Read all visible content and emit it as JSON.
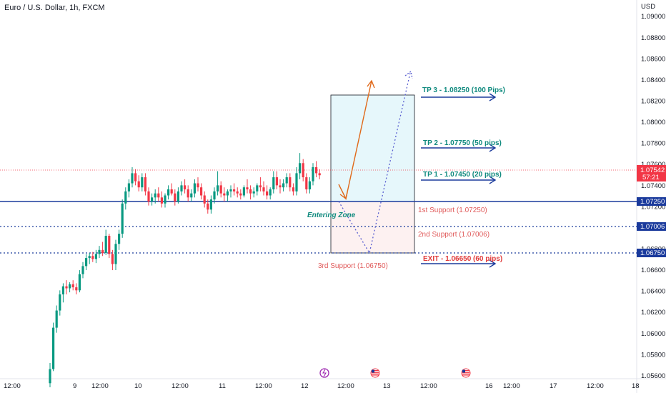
{
  "chart_data": {
    "type": "candlestick",
    "title": "Euro / U.S. Dollar, 1h, FXCM",
    "currency_label": "USD",
    "y_ticks": [
      "1.09000",
      "1.08800",
      "1.08600",
      "1.08400",
      "1.08200",
      "1.08000",
      "1.07800",
      "1.07600",
      "1.07400",
      "1.07200",
      "1.07000",
      "1.06800",
      "1.06600",
      "1.06400",
      "1.06200",
      "1.06000",
      "1.05800",
      "1.05600"
    ],
    "ylim": [
      1.0556,
      1.0912
    ],
    "x_ticks": [
      "12:00",
      "9",
      "12:00",
      "10",
      "12:00",
      "11",
      "12:00",
      "12",
      "12:00",
      "13",
      "12:00",
      "16",
      "12:00",
      "17",
      "12:00",
      "18"
    ],
    "current_price": "1.07542",
    "countdown": "57:21",
    "levels": [
      {
        "price": 1.0725,
        "label": "1.07250",
        "color": "#1a3a9c",
        "style": "solid"
      },
      {
        "price": 1.07006,
        "label": "1.07006",
        "color": "#1a3a9c",
        "style": "dotted"
      },
      {
        "price": 1.0675,
        "label": "1.06750",
        "color": "#1a3a9c",
        "style": "dotted"
      }
    ],
    "targets": [
      {
        "label": "TP 3 - 1.08250 (100 Pips)",
        "price": 1.0825
      },
      {
        "label": "TP 2 - 1.07750 (50 pips)",
        "price": 1.0775
      },
      {
        "label": "TP 1 - 1.07450 (20 pips)",
        "price": 1.0745
      }
    ],
    "exit": {
      "label": "EXIT - 1.06650 (60 pips)",
      "price": 1.0665
    },
    "supports": [
      {
        "label": "1st Support (1.07250)"
      },
      {
        "label": "2nd Support (1.07006)"
      },
      {
        "label": "3rd Support (1.06750)"
      }
    ],
    "entering_zone": "Entering Zone",
    "candles": [
      [
        1.0548,
        1.0568,
        1.0544,
        1.0562
      ],
      [
        1.0562,
        1.0608,
        1.056,
        1.0603
      ],
      [
        1.0603,
        1.0625,
        1.0598,
        1.062
      ],
      [
        1.062,
        1.064,
        1.0615,
        1.0636
      ],
      [
        1.0636,
        1.0647,
        1.0628,
        1.0644
      ],
      [
        1.0644,
        1.065,
        1.0636,
        1.0642
      ],
      [
        1.0642,
        1.0648,
        1.0638,
        1.0646
      ],
      [
        1.0646,
        1.065,
        1.064,
        1.0643
      ],
      [
        1.0643,
        1.0647,
        1.0636,
        1.064
      ],
      [
        1.064,
        1.066,
        1.0638,
        1.0656
      ],
      [
        1.0656,
        1.0668,
        1.0652,
        1.0664
      ],
      [
        1.0664,
        1.0676,
        1.066,
        1.0672
      ],
      [
        1.0672,
        1.0677,
        1.0666,
        1.0674
      ],
      [
        1.0674,
        1.0678,
        1.0668,
        1.0671
      ],
      [
        1.0671,
        1.068,
        1.0667,
        1.0676
      ],
      [
        1.0676,
        1.0684,
        1.0672,
        1.068
      ],
      [
        1.068,
        1.0688,
        1.0674,
        1.0677
      ],
      [
        1.0677,
        1.07,
        1.0675,
        1.0694
      ],
      [
        1.0694,
        1.0696,
        1.0672,
        1.0676
      ],
      [
        1.0676,
        1.068,
        1.066,
        1.0666
      ],
      [
        1.0666,
        1.069,
        1.066,
        1.0686
      ],
      [
        1.0686,
        1.07,
        1.068,
        1.0696
      ],
      [
        1.0696,
        1.073,
        1.0692,
        1.0726
      ],
      [
        1.0726,
        1.0742,
        1.072,
        1.0738
      ],
      [
        1.0738,
        1.075,
        1.0732,
        1.0746
      ],
      [
        1.0746,
        1.0762,
        1.0742,
        1.0756
      ],
      [
        1.0756,
        1.076,
        1.0744,
        1.0748
      ],
      [
        1.0748,
        1.0754,
        1.0738,
        1.0742
      ],
      [
        1.0742,
        1.0756,
        1.0738,
        1.0752
      ],
      [
        1.0752,
        1.0756,
        1.0734,
        1.0738
      ],
      [
        1.0738,
        1.0742,
        1.0724,
        1.0728
      ],
      [
        1.0728,
        1.0736,
        1.0724,
        1.0732
      ],
      [
        1.0732,
        1.074,
        1.0726,
        1.0736
      ],
      [
        1.0736,
        1.0742,
        1.0728,
        1.0732
      ],
      [
        1.0732,
        1.0738,
        1.0722,
        1.0726
      ],
      [
        1.0726,
        1.0736,
        1.0722,
        1.0734
      ],
      [
        1.0734,
        1.0744,
        1.073,
        1.074
      ],
      [
        1.074,
        1.0746,
        1.0734,
        1.0736
      ],
      [
        1.0736,
        1.074,
        1.0724,
        1.0728
      ],
      [
        1.0728,
        1.0742,
        1.0726,
        1.0738
      ],
      [
        1.0738,
        1.0748,
        1.0734,
        1.0744
      ],
      [
        1.0744,
        1.075,
        1.0736,
        1.074
      ],
      [
        1.074,
        1.0744,
        1.0728,
        1.0732
      ],
      [
        1.0732,
        1.074,
        1.0728,
        1.0736
      ],
      [
        1.0736,
        1.075,
        1.0732,
        1.0746
      ],
      [
        1.0746,
        1.0752,
        1.0738,
        1.0742
      ],
      [
        1.0742,
        1.0746,
        1.073,
        1.0734
      ],
      [
        1.0734,
        1.0738,
        1.0722,
        1.0726
      ],
      [
        1.0726,
        1.073,
        1.0716,
        1.072
      ],
      [
        1.072,
        1.0734,
        1.0716,
        1.073
      ],
      [
        1.073,
        1.0742,
        1.0726,
        1.0738
      ],
      [
        1.0738,
        1.0758,
        1.0734,
        1.0744
      ],
      [
        1.0744,
        1.0748,
        1.0732,
        1.0736
      ],
      [
        1.0736,
        1.0742,
        1.0728,
        1.0734
      ],
      [
        1.0734,
        1.074,
        1.0728,
        1.0738
      ],
      [
        1.0738,
        1.0744,
        1.0732,
        1.074
      ],
      [
        1.074,
        1.0746,
        1.0734,
        1.0738
      ],
      [
        1.0738,
        1.0742,
        1.0732,
        1.0736
      ],
      [
        1.0736,
        1.074,
        1.073,
        1.0734
      ],
      [
        1.0734,
        1.0744,
        1.0732,
        1.0742
      ],
      [
        1.0742,
        1.075,
        1.0736,
        1.074
      ],
      [
        1.074,
        1.0744,
        1.073,
        1.0736
      ],
      [
        1.0736,
        1.0742,
        1.0732,
        1.0738
      ],
      [
        1.0738,
        1.0746,
        1.0734,
        1.0744
      ],
      [
        1.0744,
        1.0752,
        1.0738,
        1.0742
      ],
      [
        1.0742,
        1.0748,
        1.0734,
        1.0738
      ],
      [
        1.0738,
        1.0744,
        1.073,
        1.0734
      ],
      [
        1.0734,
        1.0742,
        1.073,
        1.074
      ],
      [
        1.074,
        1.0758,
        1.0736,
        1.0752
      ],
      [
        1.0752,
        1.0758,
        1.074,
        1.0744
      ],
      [
        1.0744,
        1.075,
        1.0736,
        1.0742
      ],
      [
        1.0742,
        1.075,
        1.0738,
        1.0746
      ],
      [
        1.0746,
        1.0756,
        1.0742,
        1.0752
      ],
      [
        1.0752,
        1.0756,
        1.0738,
        1.0742
      ],
      [
        1.0742,
        1.0746,
        1.0734,
        1.0738
      ],
      [
        1.0738,
        1.0762,
        1.0734,
        1.0756
      ],
      [
        1.0756,
        1.0776,
        1.075,
        1.0766
      ],
      [
        1.0766,
        1.077,
        1.0748,
        1.0752
      ],
      [
        1.0752,
        1.0756,
        1.0736,
        1.074
      ],
      [
        1.074,
        1.0752,
        1.0736,
        1.0748
      ],
      [
        1.0748,
        1.0766,
        1.0744,
        1.0762
      ],
      [
        1.0762,
        1.0768,
        1.0752,
        1.0756
      ],
      [
        1.0756,
        1.076,
        1.075,
        1.0754
      ]
    ]
  }
}
